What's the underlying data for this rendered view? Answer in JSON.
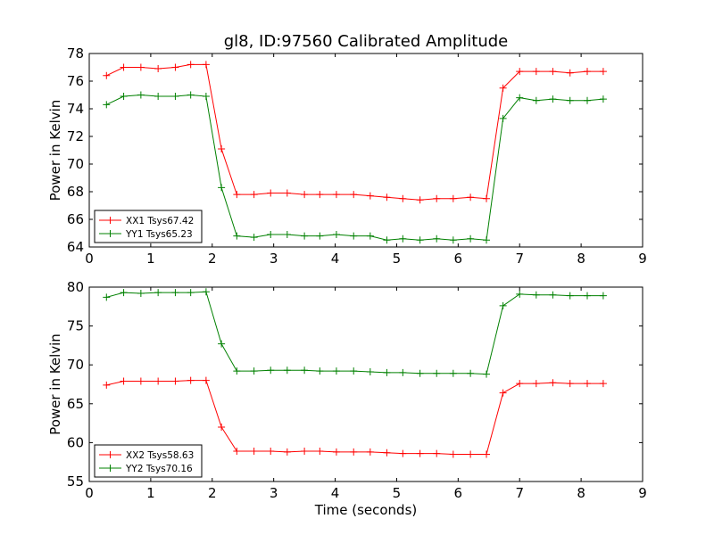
{
  "chart_data": [
    {
      "type": "line",
      "title": "gl8, ID:97560 Calibrated Amplitude",
      "xlabel": "",
      "ylabel": "Power in Kelvin",
      "xlim": [
        0,
        9
      ],
      "ylim": [
        64,
        78
      ],
      "xticks": [
        "0",
        "1",
        "2",
        "3",
        "4",
        "5",
        "6",
        "7",
        "8",
        "9"
      ],
      "yticks": [
        "64",
        "66",
        "68",
        "70",
        "72",
        "74",
        "76",
        "78"
      ],
      "grid": false,
      "legend": "lower-left",
      "x": [
        0.28,
        0.56,
        0.84,
        1.12,
        1.4,
        1.65,
        1.9,
        2.15,
        2.4,
        2.68,
        2.95,
        3.22,
        3.5,
        3.75,
        4.02,
        4.3,
        4.57,
        4.84,
        5.1,
        5.38,
        5.65,
        5.92,
        6.2,
        6.46,
        6.73,
        7.0,
        7.27,
        7.54,
        7.82,
        8.1,
        8.36
      ],
      "series": [
        {
          "name": "XX1 Tsys67.42",
          "color": "#ff0000",
          "values": [
            76.4,
            77.0,
            77.0,
            76.9,
            77.0,
            77.2,
            77.2,
            71.1,
            67.8,
            67.8,
            67.9,
            67.9,
            67.8,
            67.8,
            67.8,
            67.8,
            67.7,
            67.6,
            67.5,
            67.4,
            67.5,
            67.5,
            67.6,
            67.5,
            75.5,
            76.7,
            76.7,
            76.7,
            76.6,
            76.7,
            76.7
          ]
        },
        {
          "name": "YY1 Tsys65.23",
          "color": "#008000",
          "values": [
            74.3,
            74.9,
            75.0,
            74.9,
            74.9,
            75.0,
            74.9,
            68.3,
            64.8,
            64.7,
            64.9,
            64.9,
            64.8,
            64.8,
            64.9,
            64.8,
            64.8,
            64.5,
            64.6,
            64.5,
            64.6,
            64.5,
            64.6,
            64.5,
            73.3,
            74.8,
            74.6,
            74.7,
            74.6,
            74.6,
            74.7
          ]
        }
      ]
    },
    {
      "type": "line",
      "title": "",
      "xlabel": "Time (seconds)",
      "ylabel": "Power in Kelvin",
      "xlim": [
        0,
        9
      ],
      "ylim": [
        55,
        80
      ],
      "xticks": [
        "0",
        "1",
        "2",
        "3",
        "4",
        "5",
        "6",
        "7",
        "8",
        "9"
      ],
      "yticks": [
        "55",
        "60",
        "65",
        "70",
        "75",
        "80"
      ],
      "grid": false,
      "legend": "lower-left",
      "x": [
        0.28,
        0.56,
        0.84,
        1.12,
        1.4,
        1.65,
        1.9,
        2.15,
        2.4,
        2.68,
        2.95,
        3.22,
        3.5,
        3.75,
        4.02,
        4.3,
        4.57,
        4.84,
        5.1,
        5.38,
        5.65,
        5.92,
        6.2,
        6.46,
        6.73,
        7.0,
        7.27,
        7.54,
        7.82,
        8.1,
        8.36
      ],
      "series": [
        {
          "name": "XX2 Tsys58.63",
          "color": "#ff0000",
          "values": [
            67.4,
            67.9,
            67.9,
            67.9,
            67.9,
            68.0,
            68.0,
            62.0,
            58.9,
            58.9,
            58.9,
            58.8,
            58.9,
            58.9,
            58.8,
            58.8,
            58.8,
            58.7,
            58.6,
            58.6,
            58.6,
            58.5,
            58.5,
            58.5,
            66.4,
            67.6,
            67.6,
            67.7,
            67.6,
            67.6,
            67.6
          ]
        },
        {
          "name": "YY2 Tsys70.16",
          "color": "#008000",
          "values": [
            78.7,
            79.3,
            79.2,
            79.3,
            79.3,
            79.3,
            79.4,
            72.7,
            69.2,
            69.2,
            69.3,
            69.3,
            69.3,
            69.2,
            69.2,
            69.2,
            69.1,
            69.0,
            69.0,
            68.9,
            68.9,
            68.9,
            68.9,
            68.8,
            77.6,
            79.1,
            79.0,
            79.0,
            78.9,
            78.9,
            78.9
          ]
        }
      ]
    }
  ]
}
